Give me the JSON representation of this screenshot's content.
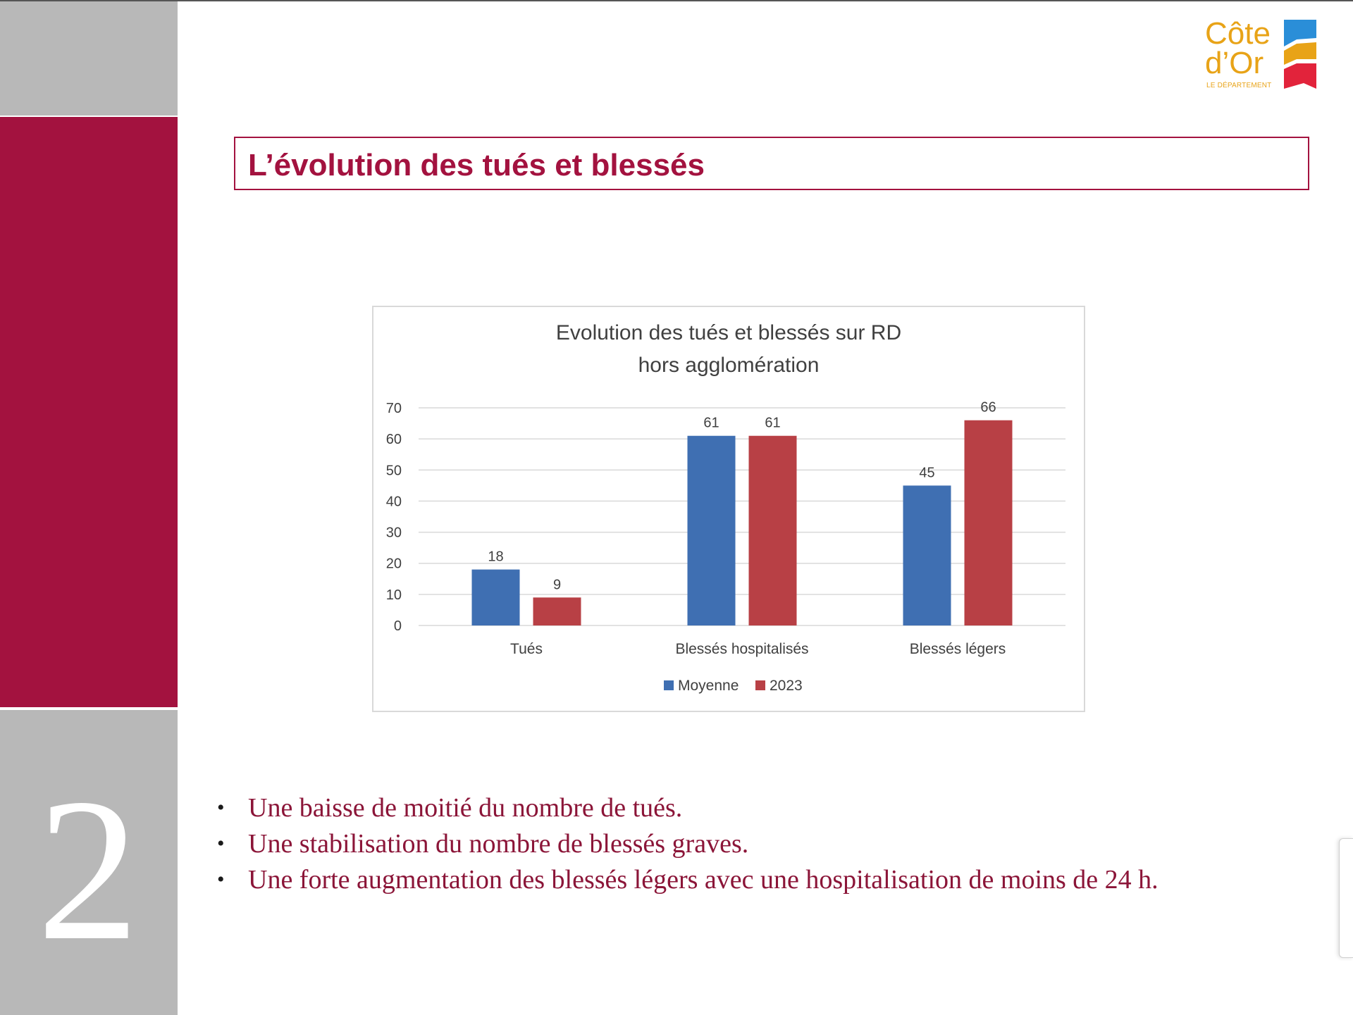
{
  "slide": {
    "number": "2",
    "title": "L’évolution des tués et blessés"
  },
  "logo": {
    "line1": "Côte",
    "line2": "d’Or",
    "subtitle": "LE DÉPARTEMENT"
  },
  "colors": {
    "accent": "#a3123f",
    "sidebar_gray": "#b8b8b8",
    "series_moyenne": "#3f6fb2",
    "series_2023": "#b84045",
    "bullet_text": "#8b1538"
  },
  "bullets": [
    "Une baisse de moitié du nombre de tués.",
    "Une stabilisation du nombre de blessés graves.",
    "Une forte augmentation des blessés légers avec une hospitalisation de moins de 24 h."
  ],
  "chart_data": {
    "type": "bar",
    "title_lines": [
      "Evolution des tués et blessés sur RD",
      "hors agglomération"
    ],
    "categories": [
      "Tués",
      "Blessés hospitalisés",
      "Blessés légers"
    ],
    "series": [
      {
        "name": "Moyenne",
        "values": [
          18,
          61,
          45
        ],
        "color": "#3f6fb2"
      },
      {
        "name": "2023",
        "values": [
          9,
          61,
          66
        ],
        "color": "#b84045"
      }
    ],
    "ylim": [
      0,
      70
    ],
    "yticks": [
      0,
      10,
      20,
      30,
      40,
      50,
      60,
      70
    ],
    "grid": true,
    "legend": "bottom",
    "data_labels": true
  }
}
